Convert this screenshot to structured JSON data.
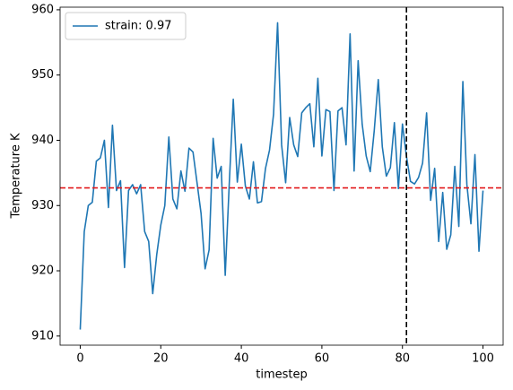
{
  "chart_data": {
    "type": "line",
    "xlabel": "timestep",
    "ylabel": "Temperature K",
    "x": [
      0,
      1,
      2,
      3,
      4,
      5,
      6,
      7,
      8,
      9,
      10,
      11,
      12,
      13,
      14,
      15,
      16,
      17,
      18,
      19,
      20,
      21,
      22,
      23,
      24,
      25,
      26,
      27,
      28,
      29,
      30,
      31,
      32,
      33,
      34,
      35,
      36,
      37,
      38,
      39,
      40,
      41,
      42,
      43,
      44,
      45,
      46,
      47,
      48,
      49,
      50,
      51,
      52,
      53,
      54,
      55,
      56,
      57,
      58,
      59,
      60,
      61,
      62,
      63,
      64,
      65,
      66,
      67,
      68,
      69,
      70,
      71,
      72,
      73,
      74,
      75,
      76,
      77,
      78,
      79,
      80,
      81,
      82,
      83,
      84,
      85,
      86,
      87,
      88,
      89,
      90,
      91,
      92,
      93,
      94,
      95,
      96,
      97,
      98,
      99,
      100
    ],
    "series": [
      {
        "name": "strain: 0.97",
        "color": "#1f77b4",
        "values": [
          911,
          926,
          930,
          930.5,
          936.8,
          937.3,
          940,
          929.7,
          942.3,
          932.3,
          933.8,
          920.5,
          932.3,
          933.2,
          931.8,
          933.2,
          926,
          924.5,
          916.5,
          922.5,
          927,
          930,
          940.5,
          931,
          929.5,
          935.3,
          932.2,
          938.8,
          938.2,
          933.5,
          928.8,
          920.3,
          923.2,
          940.3,
          934.2,
          936,
          919.3,
          933.3,
          946.3,
          933.6,
          939.4,
          933,
          931,
          936.7,
          930.4,
          930.6,
          935.7,
          938.5,
          944,
          958,
          939.3,
          933.5,
          943.5,
          939.3,
          937.5,
          944.2,
          945,
          945.6,
          939,
          949.5,
          937.6,
          944.7,
          944.4,
          932.3,
          944.5,
          945,
          939.3,
          956.3,
          935.3,
          952.2,
          942.5,
          937.6,
          935.2,
          941.5,
          949.3,
          939,
          934.5,
          935.8,
          942.7,
          932.6,
          942.5,
          937.5,
          933.7,
          933.3,
          934.3,
          936.5,
          944.2,
          930.8,
          935.7,
          924.5,
          932,
          923.3,
          925.5,
          936,
          926.8,
          949,
          933.2,
          927.2,
          937.8,
          923,
          932.3
        ]
      }
    ],
    "hlines": [
      {
        "value": 932.7,
        "color": "#e31a1c"
      }
    ],
    "vlines": [
      {
        "value": 81,
        "color": "#000000"
      }
    ],
    "xlim": [
      -5,
      105
    ],
    "xticks": [
      0,
      20,
      40,
      60,
      80,
      100
    ],
    "ylim": [
      908.6,
      960.4
    ],
    "yticks": [
      910,
      920,
      930,
      940,
      950,
      960
    ],
    "legend": "upper left"
  }
}
